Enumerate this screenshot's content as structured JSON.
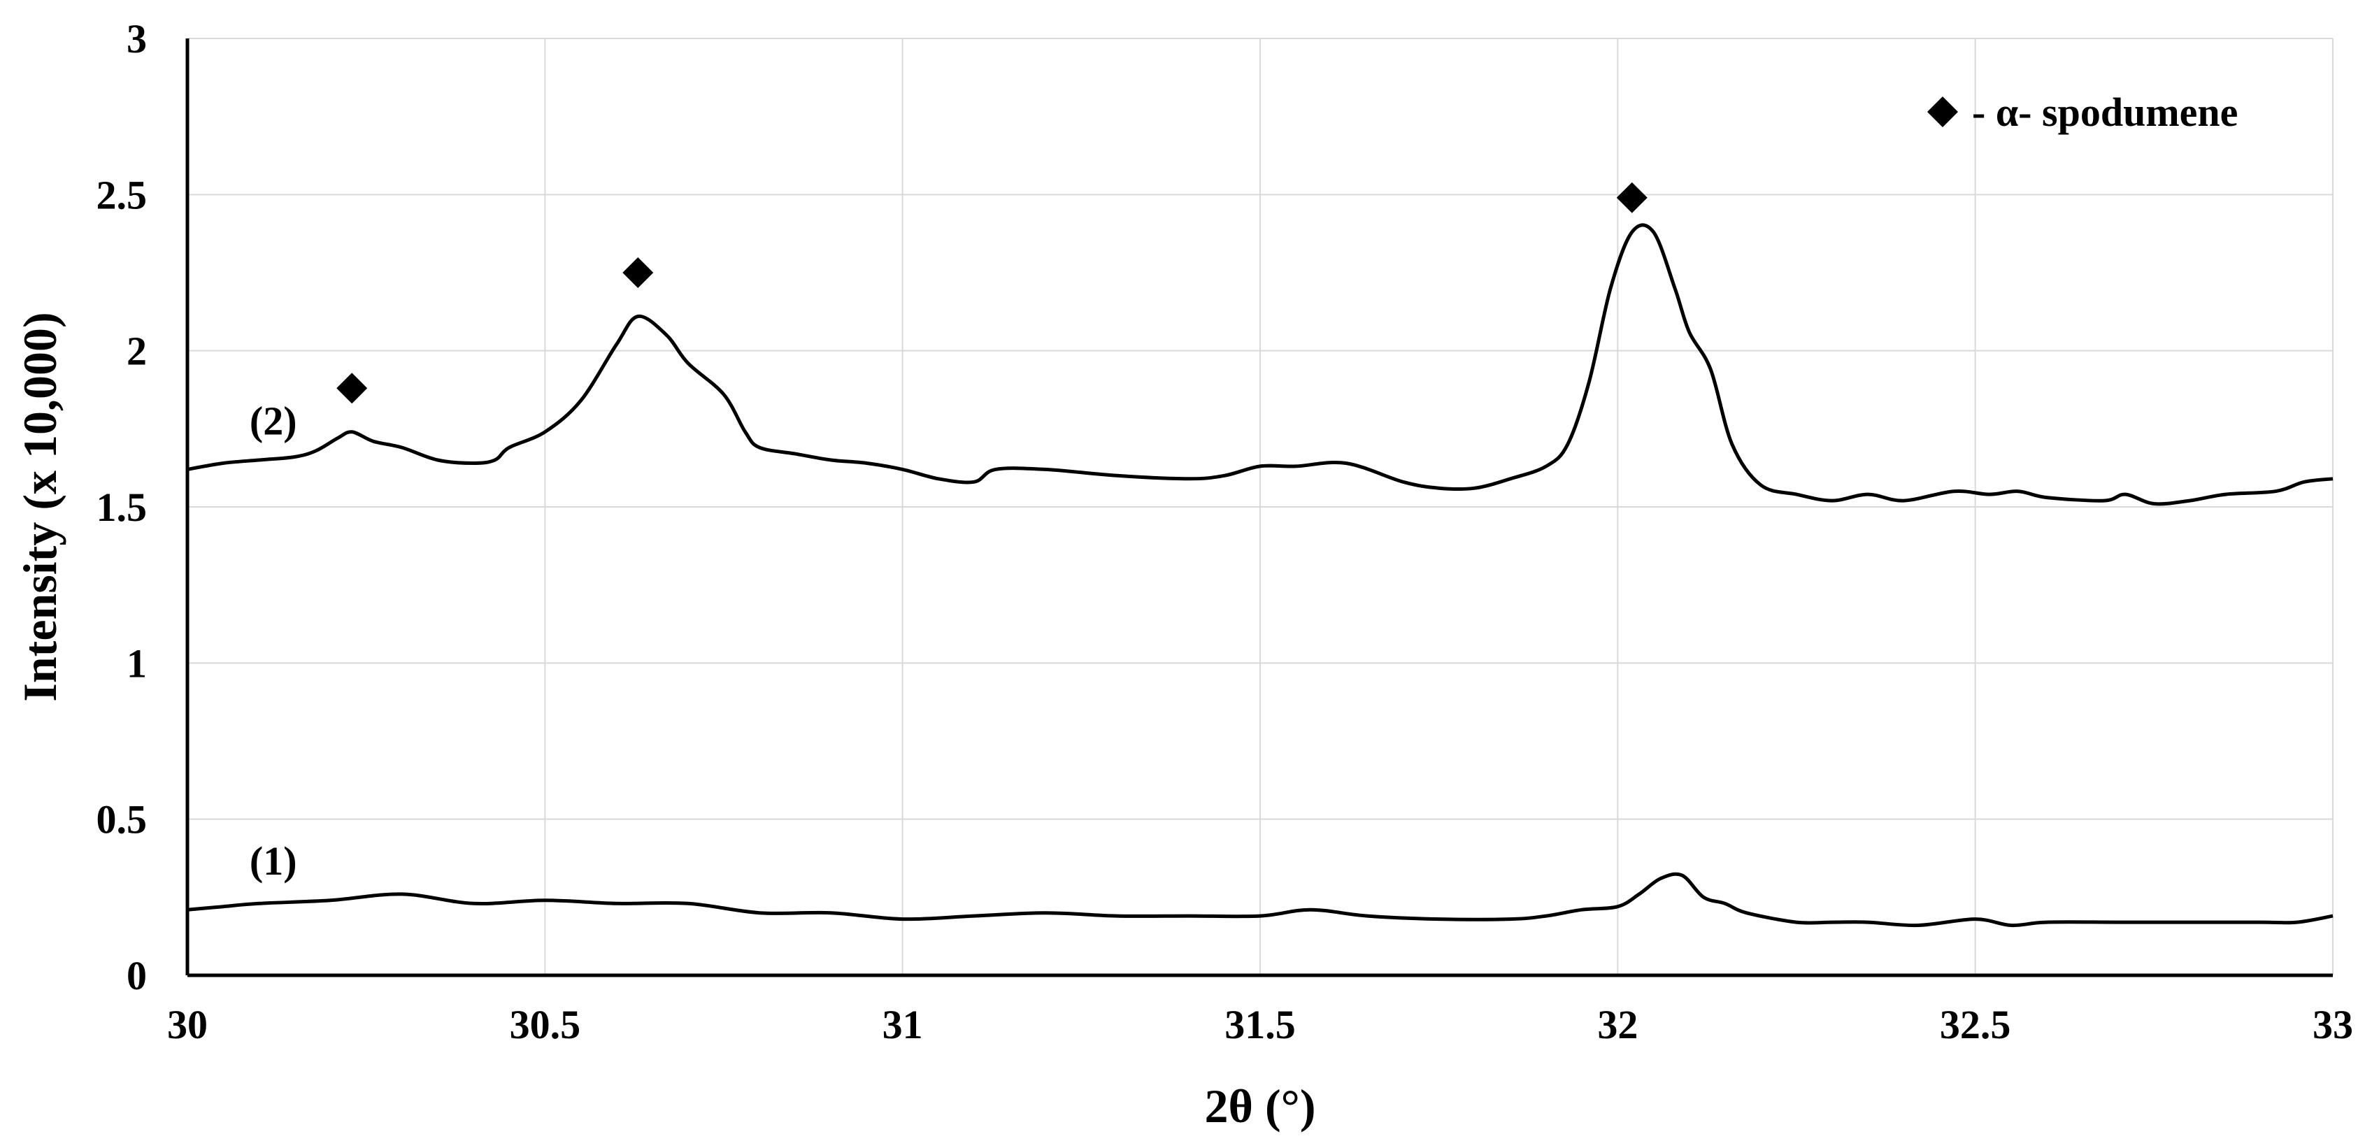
{
  "chart_data": {
    "type": "line",
    "xlabel": "2θ (°)",
    "ylabel": "Intensity (x 10,000)",
    "xlim": [
      30,
      33
    ],
    "ylim": [
      0,
      3
    ],
    "x_ticks": [
      "30",
      "30.5",
      "31",
      "31.5",
      "32",
      "32.5",
      "33"
    ],
    "y_ticks": [
      "0",
      "0.5",
      "1",
      "1.5",
      "2",
      "2.5",
      "3"
    ],
    "grid": true,
    "legend": {
      "placement": "top-right",
      "label": "- α- spodumene",
      "marker": "diamond"
    },
    "series": [
      {
        "label": "(2)",
        "points": [
          [
            30.0,
            1.62
          ],
          [
            30.05,
            1.64
          ],
          [
            30.1,
            1.65
          ],
          [
            30.15,
            1.66
          ],
          [
            30.18,
            1.68
          ],
          [
            30.21,
            1.72
          ],
          [
            30.23,
            1.74
          ],
          [
            30.26,
            1.71
          ],
          [
            30.3,
            1.69
          ],
          [
            30.35,
            1.65
          ],
          [
            30.4,
            1.64
          ],
          [
            30.43,
            1.65
          ],
          [
            30.45,
            1.69
          ],
          [
            30.5,
            1.74
          ],
          [
            30.55,
            1.84
          ],
          [
            30.6,
            2.02
          ],
          [
            30.63,
            2.11
          ],
          [
            30.67,
            2.05
          ],
          [
            30.7,
            1.96
          ],
          [
            30.75,
            1.86
          ],
          [
            30.78,
            1.74
          ],
          [
            30.8,
            1.69
          ],
          [
            30.85,
            1.67
          ],
          [
            30.9,
            1.65
          ],
          [
            30.95,
            1.64
          ],
          [
            31.0,
            1.62
          ],
          [
            31.05,
            1.59
          ],
          [
            31.1,
            1.58
          ],
          [
            31.13,
            1.62
          ],
          [
            31.2,
            1.62
          ],
          [
            31.3,
            1.6
          ],
          [
            31.4,
            1.59
          ],
          [
            31.45,
            1.6
          ],
          [
            31.5,
            1.63
          ],
          [
            31.55,
            1.63
          ],
          [
            31.62,
            1.64
          ],
          [
            31.7,
            1.58
          ],
          [
            31.75,
            1.56
          ],
          [
            31.8,
            1.56
          ],
          [
            31.85,
            1.59
          ],
          [
            31.9,
            1.63
          ],
          [
            31.93,
            1.7
          ],
          [
            31.96,
            1.9
          ],
          [
            31.99,
            2.2
          ],
          [
            32.02,
            2.38
          ],
          [
            32.05,
            2.38
          ],
          [
            32.08,
            2.2
          ],
          [
            32.1,
            2.06
          ],
          [
            32.13,
            1.94
          ],
          [
            32.16,
            1.7
          ],
          [
            32.2,
            1.57
          ],
          [
            32.25,
            1.54
          ],
          [
            32.3,
            1.52
          ],
          [
            32.35,
            1.54
          ],
          [
            32.4,
            1.52
          ],
          [
            32.47,
            1.55
          ],
          [
            32.52,
            1.54
          ],
          [
            32.56,
            1.55
          ],
          [
            32.6,
            1.53
          ],
          [
            32.68,
            1.52
          ],
          [
            32.71,
            1.54
          ],
          [
            32.75,
            1.51
          ],
          [
            32.8,
            1.52
          ],
          [
            32.85,
            1.54
          ],
          [
            32.92,
            1.55
          ],
          [
            32.96,
            1.58
          ],
          [
            33.0,
            1.59
          ]
        ]
      },
      {
        "label": "(1)",
        "points": [
          [
            30.0,
            0.21
          ],
          [
            30.05,
            0.22
          ],
          [
            30.1,
            0.23
          ],
          [
            30.2,
            0.24
          ],
          [
            30.3,
            0.26
          ],
          [
            30.4,
            0.23
          ],
          [
            30.5,
            0.24
          ],
          [
            30.6,
            0.23
          ],
          [
            30.7,
            0.23
          ],
          [
            30.8,
            0.2
          ],
          [
            30.9,
            0.2
          ],
          [
            31.0,
            0.18
          ],
          [
            31.1,
            0.19
          ],
          [
            31.2,
            0.2
          ],
          [
            31.3,
            0.19
          ],
          [
            31.4,
            0.19
          ],
          [
            31.5,
            0.19
          ],
          [
            31.57,
            0.21
          ],
          [
            31.65,
            0.19
          ],
          [
            31.75,
            0.18
          ],
          [
            31.85,
            0.18
          ],
          [
            31.9,
            0.19
          ],
          [
            31.95,
            0.21
          ],
          [
            32.0,
            0.22
          ],
          [
            32.03,
            0.26
          ],
          [
            32.06,
            0.31
          ],
          [
            32.09,
            0.32
          ],
          [
            32.12,
            0.25
          ],
          [
            32.15,
            0.23
          ],
          [
            32.18,
            0.2
          ],
          [
            32.25,
            0.17
          ],
          [
            32.3,
            0.17
          ],
          [
            32.35,
            0.17
          ],
          [
            32.42,
            0.16
          ],
          [
            32.5,
            0.18
          ],
          [
            32.55,
            0.16
          ],
          [
            32.6,
            0.17
          ],
          [
            32.7,
            0.17
          ],
          [
            32.8,
            0.17
          ],
          [
            32.9,
            0.17
          ],
          [
            32.95,
            0.17
          ],
          [
            33.0,
            0.19
          ]
        ]
      }
    ],
    "markers": [
      {
        "series": "(2)",
        "x": 30.23,
        "y": 1.88
      },
      {
        "series": "(2)",
        "x": 30.63,
        "y": 2.25
      },
      {
        "series": "(2)",
        "x": 32.02,
        "y": 2.49
      }
    ]
  },
  "colors": {
    "line": "#000000",
    "grid": "#d9d9d9",
    "axis": "#000000",
    "background": "#ffffff"
  }
}
